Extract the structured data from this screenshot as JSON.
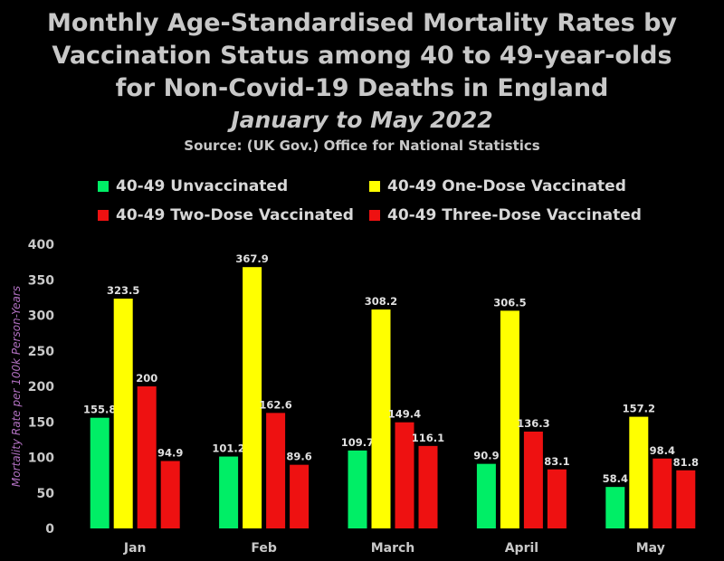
{
  "chart_data": {
    "type": "bar",
    "title": "Monthly Age-Standardised Mortality Rates by Vaccination Status among 40 to 49-year-olds for Non-Covid-19 Deaths in England",
    "subtitle": "January to May 2022",
    "source": "Source: (UK Gov.) Office for National Statistics",
    "ylabel": "Mortality Rate per 100k Person-Years",
    "xlabel": "",
    "ylim": [
      0,
      400
    ],
    "yticks": [
      "0",
      "50",
      "100",
      "150",
      "200",
      "250",
      "300",
      "350",
      "400"
    ],
    "grid": false,
    "legend_position": "top",
    "categories": [
      "Jan",
      "Feb",
      "March",
      "April",
      "May"
    ],
    "series": [
      {
        "name": "40-49 Unvaccinated",
        "color": "#00ee66",
        "values": [
          155.8,
          101.2,
          109.7,
          90.9,
          58.4
        ]
      },
      {
        "name": "40-49 One-Dose Vaccinated",
        "color": "#ffff00",
        "values": [
          323.5,
          367.9,
          308.2,
          306.5,
          157.2
        ]
      },
      {
        "name": "40-49 Two-Dose Vaccinated",
        "color": "#ee1111",
        "values": [
          200,
          162.6,
          149.4,
          136.3,
          98.4
        ]
      },
      {
        "name": "40-49 Three-Dose Vaccinated",
        "color": "#ee1111",
        "values": [
          94.9,
          89.6,
          116.1,
          83.1,
          81.8
        ]
      }
    ]
  }
}
